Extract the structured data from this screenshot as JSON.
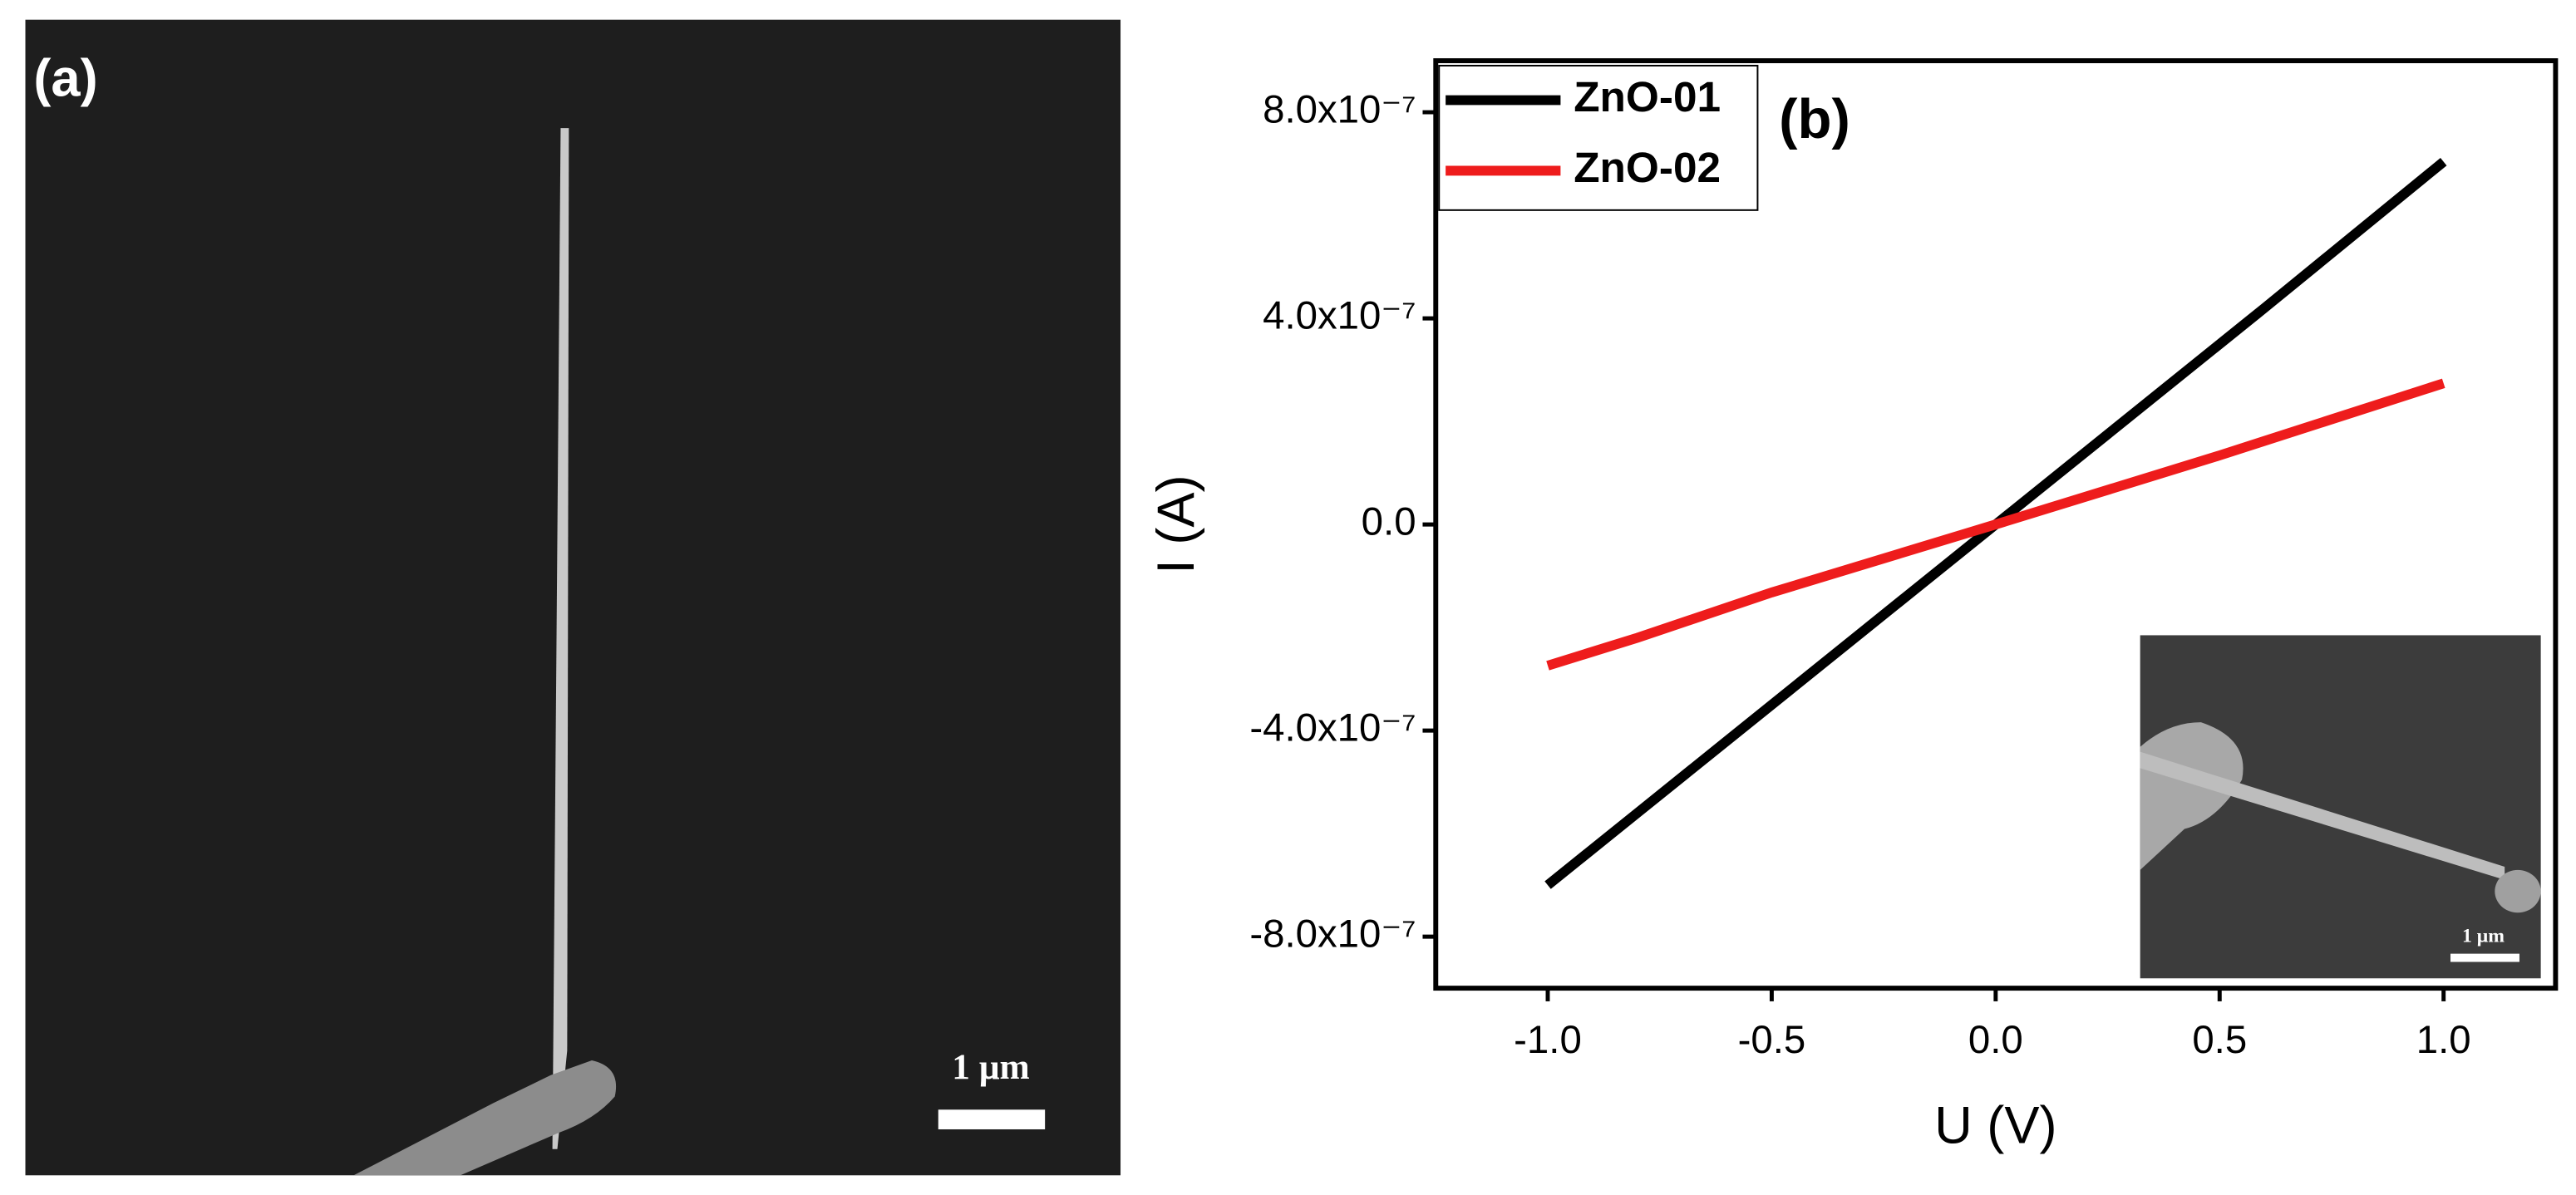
{
  "panel_a": {
    "label": "(a)",
    "scale_bar": "1 μm"
  },
  "chart_data": {
    "type": "line",
    "annotation": "(b)",
    "xlabel": "U (V)",
    "ylabel": "I (A)",
    "x": [
      -1,
      -0.8,
      -0.5,
      0,
      0.5,
      0.6,
      1
    ],
    "series": [
      {
        "name": "ZnO-01",
        "color": "#000000",
        "values": [
          -7e-07,
          -5.6e-07,
          -3.5e-07,
          0,
          3.5e-07,
          4.2e-07,
          7.04e-07
        ]
      },
      {
        "name": "ZnO-02",
        "color": "#ee1c1c",
        "values": [
          -2.74e-07,
          -2.2e-07,
          -1.32e-07,
          0,
          1.34e-07,
          1.62e-07,
          2.74e-07
        ]
      }
    ],
    "xlim": [
      -1.25,
      1.25
    ],
    "ylim": [
      -9e-07,
      9e-07
    ],
    "xticks": [
      {
        "value": -1,
        "label": "-1.0"
      },
      {
        "value": -0.5,
        "label": "-0.5"
      },
      {
        "value": 0,
        "label": "0.0"
      },
      {
        "value": 0.5,
        "label": "0.5"
      },
      {
        "value": 1,
        "label": "1.0"
      }
    ],
    "yticks": [
      {
        "value": -8e-07,
        "label": "-8.0x10⁻⁷"
      },
      {
        "value": -4e-07,
        "label": "-4.0x10⁻⁷"
      },
      {
        "value": 0,
        "label": "0.0"
      },
      {
        "value": 4e-07,
        "label": "4.0x10⁻⁷"
      },
      {
        "value": 8e-07,
        "label": "8.0x10⁻⁷"
      }
    ],
    "grid": false,
    "legend": "upper left",
    "inset": {
      "scale_bar": "1 μm"
    }
  }
}
